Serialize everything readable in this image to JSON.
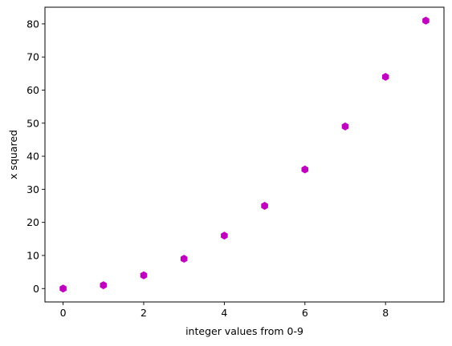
{
  "chart_data": {
    "type": "scatter",
    "xlabel": "integer values from 0-9",
    "ylabel": "x squared",
    "xlim": [
      -0.45,
      9.45
    ],
    "ylim": [
      -4.05,
      85.05
    ],
    "x_ticks": [
      0,
      2,
      4,
      6,
      8
    ],
    "y_ticks": [
      0,
      10,
      20,
      30,
      40,
      50,
      60,
      70,
      80
    ],
    "grid": false,
    "marker": "hexagon",
    "color": "#bf00bf",
    "series": [
      {
        "x": [
          0,
          1,
          2,
          3,
          4,
          5,
          6,
          7,
          8,
          9
        ],
        "y": [
          0,
          1,
          4,
          9,
          16,
          25,
          36,
          49,
          64,
          81
        ]
      }
    ]
  }
}
